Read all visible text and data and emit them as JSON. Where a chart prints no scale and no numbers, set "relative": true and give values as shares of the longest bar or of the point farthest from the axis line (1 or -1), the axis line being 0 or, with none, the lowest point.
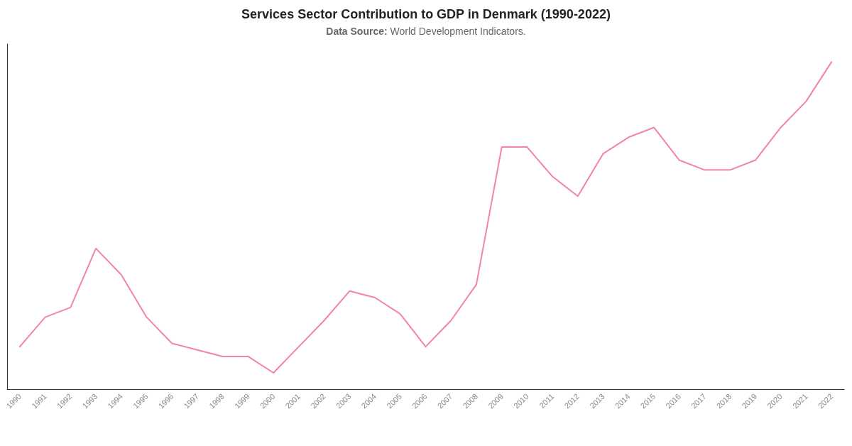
{
  "chart_data": {
    "type": "line",
    "title": "Services Sector Contribution to GDP in Denmark (1990-2022)",
    "subtitle": "Data Source: World Development Indicators.",
    "categories": [
      "1990",
      "1991",
      "1992",
      "1993",
      "1994",
      "1995",
      "1996",
      "1997",
      "1998",
      "1999",
      "2000",
      "2001",
      "2002",
      "2003",
      "2004",
      "2005",
      "2006",
      "2007",
      "2008",
      "2009",
      "2010",
      "2011",
      "2012",
      "2013",
      "2014",
      "2015",
      "2016",
      "2017",
      "2018",
      "2019",
      "2020",
      "2021",
      "2022"
    ],
    "series": [
      {
        "color": "#f283ad",
        "values": [
          0.13,
          0.22,
          0.25,
          0.43,
          0.35,
          0.22,
          0.14,
          0.12,
          0.1,
          0.1,
          0.05,
          0.13,
          0.21,
          0.3,
          0.28,
          0.23,
          0.13,
          0.21,
          0.32,
          0.74,
          0.74,
          0.65,
          0.59,
          0.72,
          0.77,
          0.8,
          0.7,
          0.67,
          0.67,
          0.7,
          0.8,
          0.88,
          1
        ]
      }
    ],
    "relative": true,
    "marker": "none"
  }
}
